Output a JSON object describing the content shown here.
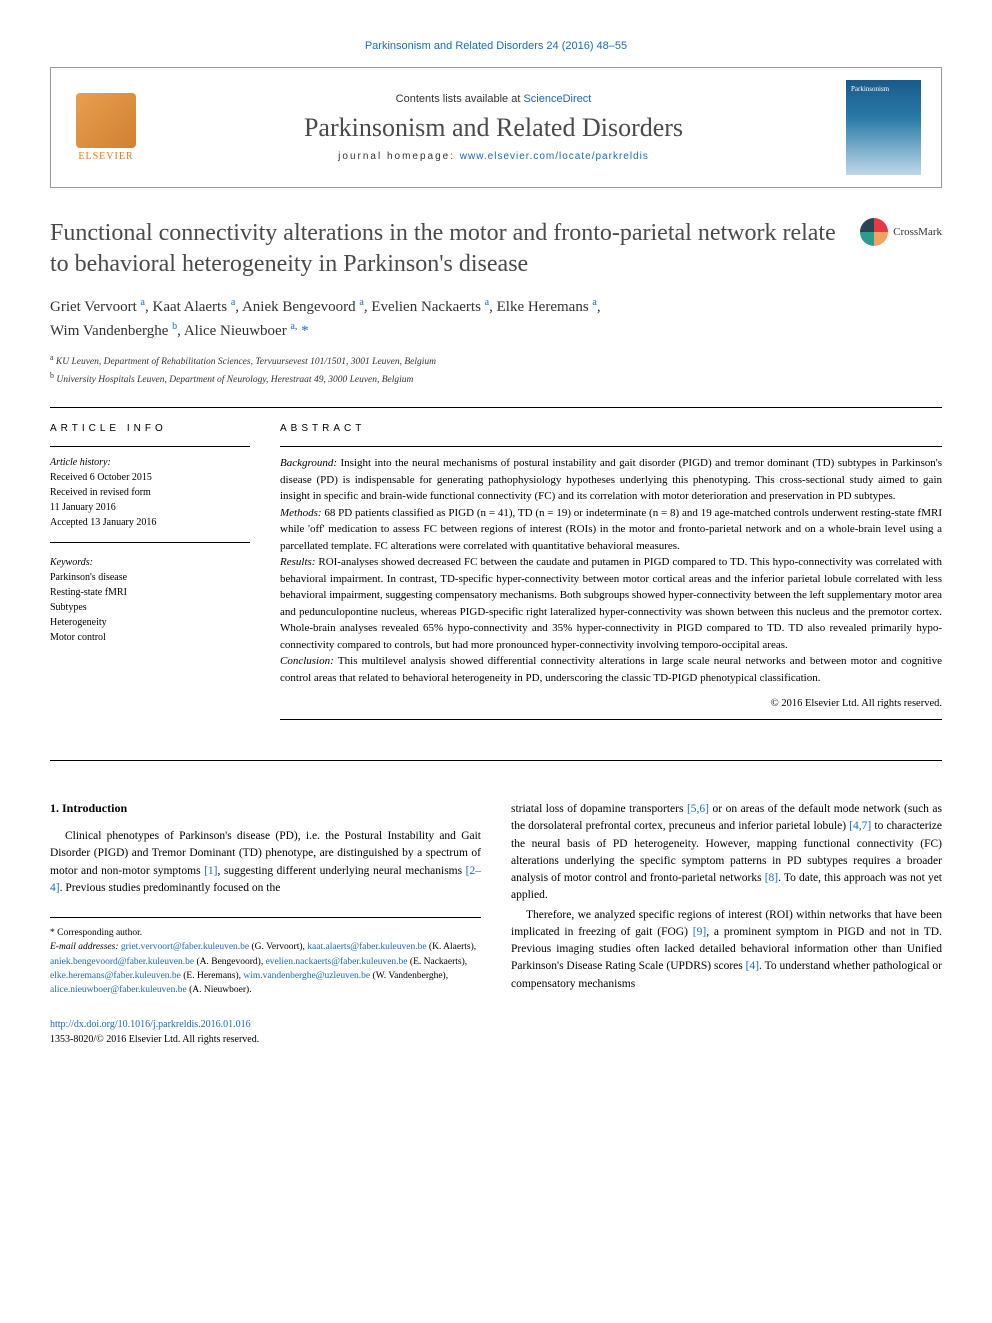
{
  "header": {
    "journal_ref": "Parkinsonism and Related Disorders 24 (2016) 48–55",
    "contents_prefix": "Contents lists available at ",
    "contents_link": "ScienceDirect",
    "journal_name": "Parkinsonism and Related Disorders",
    "homepage_prefix": "journal homepage: ",
    "homepage_url": "www.elsevier.com/locate/parkreldis",
    "publisher": "ELSEVIER",
    "crossmark_label": "CrossMark"
  },
  "article": {
    "title": "Functional connectivity alterations in the motor and fronto-parietal network relate to behavioral heterogeneity in Parkinson's disease",
    "authors_html": "Griet Vervoort <sup>a</sup>, Kaat Alaerts <sup>a</sup>, Aniek Bengevoord <sup>a</sup>, Evelien Nackaerts <sup>a</sup>, Elke Heremans <sup>a</sup>, Wim Vandenberghe <sup>b</sup>, Alice Nieuwboer <sup>a, *</sup>",
    "affiliations": {
      "a": "KU Leuven, Department of Rehabilitation Sciences, Tervuursevest 101/1501, 3001 Leuven, Belgium",
      "b": "University Hospitals Leuven, Department of Neurology, Herestraat 49, 3000 Leuven, Belgium"
    }
  },
  "meta": {
    "article_info_label": "ARTICLE INFO",
    "history_label": "Article history:",
    "history": [
      "Received 6 October 2015",
      "Received in revised form",
      "11 January 2016",
      "Accepted 13 January 2016"
    ],
    "keywords_label": "Keywords:",
    "keywords": [
      "Parkinson's disease",
      "Resting-state fMRI",
      "Subtypes",
      "Heterogeneity",
      "Motor control"
    ]
  },
  "abstract": {
    "label": "ABSTRACT",
    "sections": {
      "Background": "Insight into the neural mechanisms of postural instability and gait disorder (PIGD) and tremor dominant (TD) subtypes in Parkinson's disease (PD) is indispensable for generating pathophysiology hypotheses underlying this phenotyping. This cross-sectional study aimed to gain insight in specific and brain-wide functional connectivity (FC) and its correlation with motor deterioration and preservation in PD subtypes.",
      "Methods": "68 PD patients classified as PIGD (n = 41), TD (n = 19) or indeterminate (n = 8) and 19 age-matched controls underwent resting-state fMRI while 'off' medication to assess FC between regions of interest (ROIs) in the motor and fronto-parietal network and on a whole-brain level using a parcellated template. FC alterations were correlated with quantitative behavioral measures.",
      "Results": "ROI-analyses showed decreased FC between the caudate and putamen in PIGD compared to TD. This hypo-connectivity was correlated with behavioral impairment. In contrast, TD-specific hyper-connectivity between motor cortical areas and the inferior parietal lobule correlated with less behavioral impairment, suggesting compensatory mechanisms. Both subgroups showed hyper-connectivity between the left supplementary motor area and pedunculopontine nucleus, whereas PIGD-specific right lateralized hyper-connectivity was shown between this nucleus and the premotor cortex. Whole-brain analyses revealed 65% hypo-connectivity and 35% hyper-connectivity in PIGD compared to TD. TD also revealed primarily hypo-connectivity compared to controls, but had more pronounced hyper-connectivity involving temporo-occipital areas.",
      "Conclusion": "This multilevel analysis showed differential connectivity alterations in large scale neural networks and between motor and cognitive control areas that related to behavioral heterogeneity in PD, underscoring the classic TD-PIGD phenotypical classification."
    },
    "copyright": "© 2016 Elsevier Ltd. All rights reserved."
  },
  "body": {
    "intro_heading": "1. Introduction",
    "para1_pre": "Clinical phenotypes of Parkinson's disease (PD), i.e. the Postural Instability and Gait Disorder (PIGD) and Tremor Dominant (TD) phenotype, are distinguished by a spectrum of motor and non-motor symptoms ",
    "cite1": "[1]",
    "para1_mid": ", suggesting different underlying neural mechanisms ",
    "cite2": "[2–4]",
    "para1_post": ". Previous studies predominantly focused on the",
    "para2_pre": "striatal loss of dopamine transporters ",
    "cite3": "[5,6]",
    "para2_mid1": " or on areas of the default mode network (such as the dorsolateral prefrontal cortex, precuneus and inferior parietal lobule) ",
    "cite4": "[4,7]",
    "para2_mid2": " to characterize the neural basis of PD heterogeneity. However, mapping functional connectivity (FC) alterations underlying the specific symptom patterns in PD subtypes requires a broader analysis of motor control and fronto-parietal networks ",
    "cite5": "[8]",
    "para2_post": ". To date, this approach was not yet applied.",
    "para3_pre": "Therefore, we analyzed specific regions of interest (ROI) within networks that have been implicated in freezing of gait (FOG) ",
    "cite6": "[9]",
    "para3_mid": ", a prominent symptom in PIGD and not in TD. Previous imaging studies often lacked detailed behavioral information other than Unified Parkinson's Disease Rating Scale (UPDRS) scores ",
    "cite7": "[4]",
    "para3_post": ". To understand whether pathological or compensatory mechanisms"
  },
  "footnotes": {
    "corr_label": "* Corresponding author.",
    "email_label": "E-mail addresses:",
    "emails": [
      {
        "addr": "griet.vervoort@faber.kuleuven.be",
        "name": "(G. Vervoort)"
      },
      {
        "addr": "kaat.alaerts@faber.kuleuven.be",
        "name": "(K. Alaerts)"
      },
      {
        "addr": "aniek.bengevoord@faber.kuleuven.be",
        "name": "(A. Bengevoord)"
      },
      {
        "addr": "evelien.nackaerts@faber.kuleuven.be",
        "name": "(E. Nackaerts)"
      },
      {
        "addr": "elke.heremans@faber.kuleuven.be",
        "name": "(E. Heremans)"
      },
      {
        "addr": "wim.vandenberghe@uzleuven.be",
        "name": "(W. Vandenberghe)"
      },
      {
        "addr": "alice.nieuwboer@faber.kuleuven.be",
        "name": "(A. Nieuwboer)"
      }
    ]
  },
  "footer": {
    "doi": "http://dx.doi.org/10.1016/j.parkreldis.2016.01.016",
    "issn_copyright": "1353-8020/© 2016 Elsevier Ltd. All rights reserved."
  },
  "colors": {
    "link": "#1a6bb8",
    "text": "#000000",
    "title_gray": "#4a4a4a"
  }
}
